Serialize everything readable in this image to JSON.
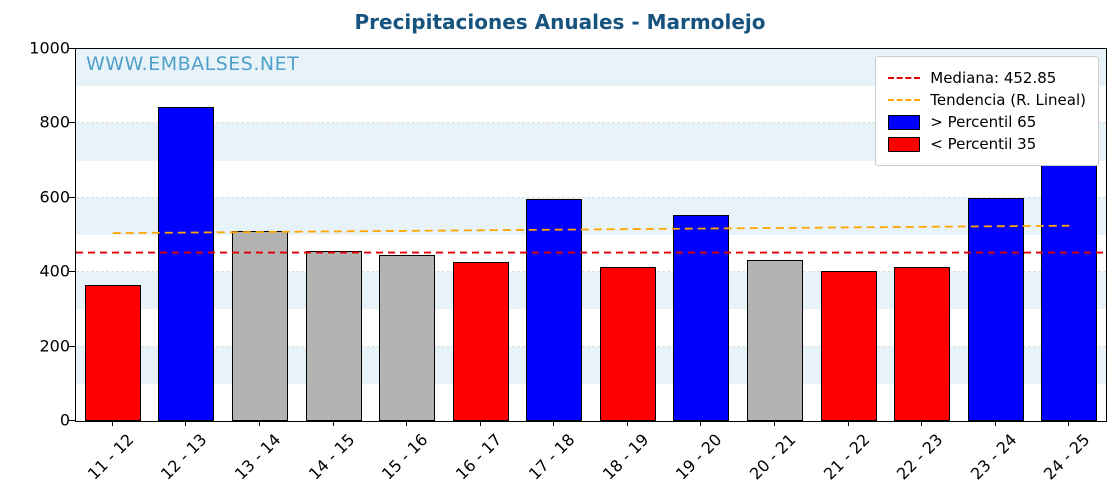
{
  "title": "Precipitaciones Anuales - Marmolejo",
  "watermark": "WWW.EMBALSES.NET",
  "colors": {
    "title": "#16537e",
    "watermark": "#4f9fc8",
    "blue": "#0000ff",
    "blue_light": "#5a5af7",
    "red": "#ff0000",
    "gray": "#b3b3b3",
    "median_line": "#e00000",
    "trend_line": "#ffa500",
    "stripe": "#e8f3f9"
  },
  "chart_data": {
    "type": "bar",
    "title": "Precipitaciones Anuales - Marmolejo",
    "categories": [
      "11 - 12",
      "12 - 13",
      "13 - 14",
      "14 - 15",
      "15 - 16",
      "16 - 17",
      "17 - 18",
      "18 - 19",
      "19 - 20",
      "20 - 21",
      "21 - 22",
      "22 - 23",
      "23 - 24",
      "24 - 25"
    ],
    "values": [
      365,
      845,
      512,
      457,
      447,
      428,
      597,
      413,
      553,
      433,
      402,
      413,
      600,
      715
    ],
    "bar_colors": [
      "red",
      "blue",
      "gray",
      "gray",
      "gray",
      "red",
      "blue",
      "red",
      "blue",
      "gray",
      "red",
      "red",
      "blue",
      "blue"
    ],
    "last_bar_cap_from": 685,
    "xlabel": "",
    "ylabel": "",
    "ylim": [
      0,
      1000
    ],
    "yticks": [
      0,
      200,
      400,
      600,
      800,
      1000
    ],
    "median": 452.85,
    "trend": {
      "start": 505,
      "end": 525
    },
    "grid": true,
    "legend_position": "upper right",
    "legend": [
      {
        "label": "Mediana: 452.85",
        "sample": "dashed-line",
        "color_key": "median_line"
      },
      {
        "label": "Tendencia (R. Lineal)",
        "sample": "dashed-line",
        "color_key": "trend_line"
      },
      {
        "label": "> Percentil 65",
        "sample": "patch",
        "color_key": "blue"
      },
      {
        "label": "< Percentil 35",
        "sample": "patch",
        "color_key": "red"
      }
    ]
  }
}
